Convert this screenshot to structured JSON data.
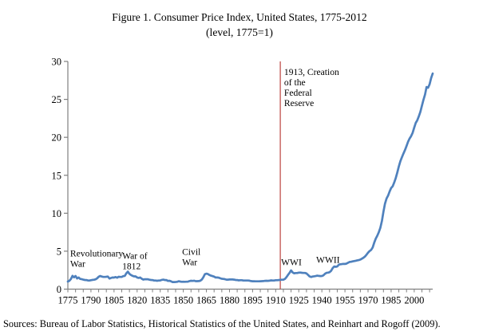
{
  "title": {
    "line1": "Figure 1. Consumer Price Index, United States, 1775-2012",
    "line2": "(level, 1775=1)"
  },
  "source": {
    "text": "Sources: Bureau of Labor Statistics, Historical Statistics of the United States, and Reinhart and Rogoff (2009)."
  },
  "chart_data": {
    "type": "line",
    "title": "Figure 1. Consumer Price Index, United States, 1775-2012",
    "subtitle": "(level, 1775=1)",
    "xlabel": "",
    "ylabel": "",
    "xlim": [
      1775,
      2012
    ],
    "ylim": [
      0,
      30
    ],
    "grid": false,
    "yticks": [
      0,
      5,
      10,
      15,
      20,
      25,
      30
    ],
    "xticks_labeled": [
      1775,
      1790,
      1805,
      1820,
      1835,
      1850,
      1865,
      1880,
      1895,
      1910,
      1925,
      1940,
      1955,
      1970,
      1985,
      2000
    ],
    "xtick_minor_start": 1775,
    "xtick_minor_end": 2010,
    "xtick_minor_step": 5,
    "colors": {
      "series": "#4f81bd",
      "vline": "#c0504d",
      "axis": "#808080",
      "text": "#000000"
    },
    "vline": {
      "year": 1913,
      "label_lines": [
        "1913, Creation",
        "of the",
        "Federal",
        "Reserve"
      ],
      "label_year": 1915.5,
      "label_value": 28.2
    },
    "annotations": [
      {
        "id": "revolutionary-war",
        "lines": [
          "Revolutionary",
          "War"
        ],
        "year": 1776.5,
        "value": 4.3
      },
      {
        "id": "war-of-1812",
        "lines": [
          "War of",
          "1812"
        ],
        "year": 1810.3,
        "value": 4.0
      },
      {
        "id": "civil-war",
        "lines": [
          "Civil",
          "War"
        ],
        "year": 1849.2,
        "value": 4.5
      },
      {
        "id": "wwi",
        "lines": [
          "WWI"
        ],
        "year": 1913.5,
        "value": 3.15
      },
      {
        "id": "wwii",
        "lines": [
          "WWII"
        ],
        "year": 1936.3,
        "value": 3.46
      }
    ],
    "series": [
      {
        "name": "CPI level (1775=1)",
        "x_start": 1775,
        "x_step": 1,
        "values": [
          1.0,
          1.1,
          1.35,
          1.76,
          1.55,
          1.73,
          1.41,
          1.53,
          1.35,
          1.31,
          1.25,
          1.21,
          1.2,
          1.15,
          1.14,
          1.18,
          1.22,
          1.24,
          1.29,
          1.42,
          1.63,
          1.73,
          1.66,
          1.61,
          1.61,
          1.63,
          1.66,
          1.4,
          1.47,
          1.53,
          1.52,
          1.6,
          1.5,
          1.63,
          1.61,
          1.61,
          1.71,
          1.74,
          2.09,
          2.3,
          2.02,
          1.86,
          1.76,
          1.68,
          1.68,
          1.53,
          1.48,
          1.53,
          1.37,
          1.26,
          1.3,
          1.3,
          1.3,
          1.24,
          1.21,
          1.2,
          1.14,
          1.13,
          1.1,
          1.13,
          1.15,
          1.22,
          1.25,
          1.2,
          1.2,
          1.08,
          1.1,
          1.03,
          0.93,
          0.94,
          0.95,
          0.97,
          1.04,
          1.0,
          0.97,
          0.98,
          0.97,
          0.98,
          0.99,
          1.06,
          1.1,
          1.08,
          1.11,
          1.05,
          1.05,
          1.06,
          1.1,
          1.26,
          1.57,
          1.97,
          2.04,
          1.99,
          1.86,
          1.78,
          1.71,
          1.65,
          1.53,
          1.53,
          1.51,
          1.43,
          1.37,
          1.35,
          1.31,
          1.25,
          1.25,
          1.27,
          1.27,
          1.27,
          1.25,
          1.21,
          1.2,
          1.16,
          1.18,
          1.18,
          1.14,
          1.13,
          1.13,
          1.13,
          1.11,
          1.06,
          1.04,
          1.04,
          1.03,
          1.03,
          1.03,
          1.04,
          1.05,
          1.06,
          1.09,
          1.1,
          1.09,
          1.11,
          1.16,
          1.14,
          1.13,
          1.18,
          1.18,
          1.2,
          1.22,
          1.24,
          1.25,
          1.35,
          1.58,
          1.87,
          2.14,
          2.47,
          2.21,
          2.08,
          2.12,
          2.12,
          2.17,
          2.19,
          2.15,
          2.13,
          2.13,
          2.07,
          1.88,
          1.68,
          1.6,
          1.66,
          1.69,
          1.72,
          1.78,
          1.74,
          1.72,
          1.73,
          1.82,
          2.02,
          2.14,
          2.18,
          2.23,
          2.41,
          2.76,
          2.98,
          2.94,
          2.98,
          3.22,
          3.28,
          3.3,
          3.33,
          3.32,
          3.36,
          3.48,
          3.58,
          3.6,
          3.66,
          3.7,
          3.74,
          3.79,
          3.83,
          3.9,
          4.01,
          4.13,
          4.3,
          4.54,
          4.8,
          5.01,
          5.17,
          5.49,
          6.1,
          6.66,
          7.04,
          7.5,
          8.07,
          8.98,
          10.19,
          11.24,
          11.94,
          12.32,
          12.85,
          13.31,
          13.56,
          14.05,
          14.63,
          15.34,
          16.17,
          16.85,
          17.36,
          17.87,
          18.33,
          18.85,
          19.41,
          19.85,
          20.16,
          20.61,
          21.3,
          21.91,
          22.25,
          22.76,
          23.37,
          24.16,
          24.94,
          25.64,
          26.63,
          26.53,
          26.98,
          27.82,
          28.4
        ]
      }
    ]
  }
}
